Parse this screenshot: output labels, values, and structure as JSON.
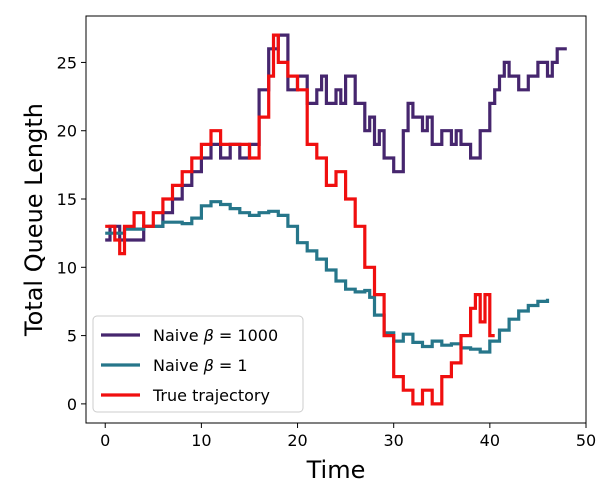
{
  "chart_data": {
    "type": "line",
    "title": "",
    "xlabel": "Time",
    "ylabel": "Total Queue Length",
    "xlim": [
      -2,
      50
    ],
    "ylim": [
      -1.4,
      28.4
    ],
    "xticks": [
      0,
      10,
      20,
      30,
      40,
      50
    ],
    "yticks": [
      0,
      5,
      10,
      15,
      20,
      25
    ],
    "grid": false,
    "legend_position": "lower-left",
    "series": [
      {
        "name": "Naive β = 1000",
        "label_prefix": "Naive ",
        "label_symbol": "β",
        "label_suffix": " = 1000",
        "color": "#46266e",
        "step": true,
        "points": [
          [
            0,
            12
          ],
          [
            0.5,
            13
          ],
          [
            1.5,
            12
          ],
          [
            2,
            12
          ],
          [
            4,
            13
          ],
          [
            5,
            13
          ],
          [
            6,
            14
          ],
          [
            7,
            15
          ],
          [
            8,
            16
          ],
          [
            9,
            17
          ],
          [
            10,
            18
          ],
          [
            11,
            19
          ],
          [
            12,
            18
          ],
          [
            13,
            19
          ],
          [
            14,
            18
          ],
          [
            15,
            19
          ],
          [
            16,
            23
          ],
          [
            17,
            26
          ],
          [
            18,
            27
          ],
          [
            19,
            23
          ],
          [
            20,
            24
          ],
          [
            21,
            22
          ],
          [
            22,
            23
          ],
          [
            22.5,
            24
          ],
          [
            23,
            22
          ],
          [
            24,
            23
          ],
          [
            24.5,
            22
          ],
          [
            25,
            24
          ],
          [
            26,
            22
          ],
          [
            27,
            20
          ],
          [
            27.5,
            21
          ],
          [
            28,
            19
          ],
          [
            28.5,
            20
          ],
          [
            29,
            18
          ],
          [
            30,
            17
          ],
          [
            31,
            20
          ],
          [
            31.5,
            22
          ],
          [
            32,
            21
          ],
          [
            33,
            20
          ],
          [
            33.5,
            21
          ],
          [
            34,
            19
          ],
          [
            35,
            20
          ],
          [
            36,
            19
          ],
          [
            36.5,
            20
          ],
          [
            37,
            19
          ],
          [
            38,
            18
          ],
          [
            39,
            20
          ],
          [
            40,
            22
          ],
          [
            40.5,
            23
          ],
          [
            41,
            24
          ],
          [
            41.5,
            25
          ],
          [
            42,
            24
          ],
          [
            43,
            23
          ],
          [
            44,
            24
          ],
          [
            45,
            25
          ],
          [
            46,
            24
          ],
          [
            46.5,
            25
          ],
          [
            47,
            26
          ],
          [
            48,
            26
          ]
        ]
      },
      {
        "name": "Naive β = 1",
        "label_prefix": "Naive ",
        "label_symbol": "β",
        "label_suffix": " = 1",
        "color": "#26768a",
        "step": true,
        "points": [
          [
            0,
            12.5
          ],
          [
            2,
            12.8
          ],
          [
            4,
            13
          ],
          [
            6,
            13.3
          ],
          [
            8,
            13.2
          ],
          [
            9,
            13.6
          ],
          [
            10,
            14.5
          ],
          [
            11,
            14.8
          ],
          [
            12,
            14.6
          ],
          [
            13,
            14.3
          ],
          [
            14,
            14
          ],
          [
            15,
            13.8
          ],
          [
            16,
            14
          ],
          [
            17,
            14.1
          ],
          [
            18,
            13.8
          ],
          [
            19,
            13
          ],
          [
            20,
            11.8
          ],
          [
            21,
            11.2
          ],
          [
            22,
            10.6
          ],
          [
            23,
            9.8
          ],
          [
            24,
            9
          ],
          [
            25,
            8.4
          ],
          [
            26,
            8.2
          ],
          [
            27,
            8.3
          ],
          [
            27.5,
            7.8
          ],
          [
            28,
            6.5
          ],
          [
            29,
            5.2
          ],
          [
            30,
            4.6
          ],
          [
            31,
            5.1
          ],
          [
            32,
            4.5
          ],
          [
            33,
            4.2
          ],
          [
            34,
            4.6
          ],
          [
            35,
            4.3
          ],
          [
            36,
            4.4
          ],
          [
            37,
            4.1
          ],
          [
            38,
            4
          ],
          [
            39,
            3.8
          ],
          [
            40,
            4.6
          ],
          [
            41,
            5.4
          ],
          [
            42,
            6.2
          ],
          [
            43,
            6.8
          ],
          [
            44,
            7.2
          ],
          [
            45,
            7.5
          ],
          [
            46,
            7.7
          ]
        ]
      },
      {
        "name": "True trajectory",
        "color": "#f00f0f",
        "step": true,
        "points": [
          [
            0,
            13
          ],
          [
            1,
            12
          ],
          [
            1.5,
            11
          ],
          [
            2,
            13
          ],
          [
            3,
            14
          ],
          [
            4,
            13
          ],
          [
            5,
            14
          ],
          [
            6,
            15
          ],
          [
            7,
            16
          ],
          [
            8,
            17
          ],
          [
            9,
            18
          ],
          [
            10,
            19
          ],
          [
            11,
            20
          ],
          [
            12,
            19
          ],
          [
            13,
            19
          ],
          [
            14,
            19
          ],
          [
            15,
            18
          ],
          [
            16,
            21
          ],
          [
            17,
            24
          ],
          [
            17.5,
            27
          ],
          [
            18,
            25
          ],
          [
            19,
            24
          ],
          [
            20,
            23
          ],
          [
            21,
            19
          ],
          [
            22,
            18
          ],
          [
            23,
            16
          ],
          [
            24,
            17
          ],
          [
            25,
            15
          ],
          [
            26,
            13
          ],
          [
            27,
            10
          ],
          [
            28,
            8
          ],
          [
            29,
            5
          ],
          [
            30,
            2
          ],
          [
            31,
            1
          ],
          [
            32,
            0
          ],
          [
            33,
            1
          ],
          [
            34,
            0
          ],
          [
            35,
            2
          ],
          [
            36,
            3
          ],
          [
            37,
            5
          ],
          [
            38,
            7
          ],
          [
            38.5,
            8
          ],
          [
            39,
            6
          ],
          [
            39.5,
            8
          ],
          [
            40,
            5
          ],
          [
            40.5,
            5
          ]
        ]
      }
    ]
  }
}
